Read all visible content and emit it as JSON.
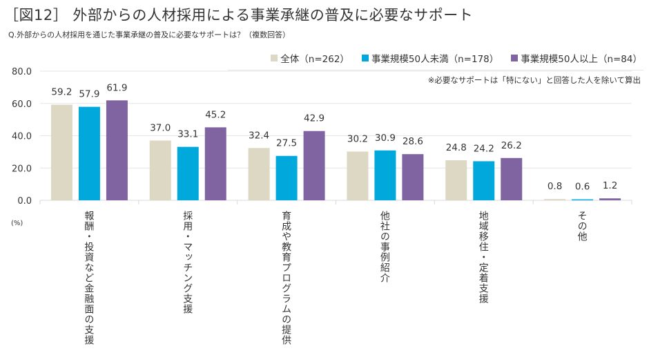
{
  "header": {
    "title": "［図12］ 外部からの人材採用による事業承継の普及に必要なサポート",
    "subtitle": "Q.外部からの人材採用を通じた事業承継の普及に必要なサポートは？（複数回答）",
    "note": "※必要なサポートは「特にない」と回答した人を除いて算出",
    "unit": "(%)"
  },
  "chart_data": {
    "type": "bar",
    "title": "外部からの人材採用による事業承継の普及に必要なサポート",
    "xlabel": "",
    "ylabel": "(%)",
    "ylim": [
      0,
      80
    ],
    "yticks": [
      "0.0",
      "20.0",
      "40.0",
      "60.0",
      "80.0"
    ],
    "grid": true,
    "legend_position": "top-right",
    "categories": [
      "報酬・投資など金融面の支援",
      "採用・マッチング支援",
      "育成や教育プログラムの提供",
      "他社の事例紹介",
      "地域移住・定着支援",
      "その他"
    ],
    "series": [
      {
        "name": "全体（n=262）",
        "color": "#ddd8c4",
        "values": [
          59.2,
          37.0,
          32.4,
          30.2,
          24.8,
          0.8
        ],
        "labels": [
          "59.2",
          "37.0",
          "32.4",
          "30.2",
          "24.8",
          "0.8"
        ]
      },
      {
        "name": "事業規模50人未満（n=178）",
        "color": "#00a8dc",
        "values": [
          57.9,
          33.1,
          27.5,
          30.9,
          24.2,
          0.6
        ],
        "labels": [
          "57.9",
          "33.1",
          "27.5",
          "30.9",
          "24.2",
          "0.6"
        ]
      },
      {
        "name": "事業規模50人以上（n=84）",
        "color": "#8064a2",
        "values": [
          61.9,
          45.2,
          42.9,
          28.6,
          26.2,
          1.2
        ],
        "labels": [
          "61.9",
          "45.2",
          "42.9",
          "28.6",
          "26.2",
          "1.2"
        ]
      }
    ]
  }
}
